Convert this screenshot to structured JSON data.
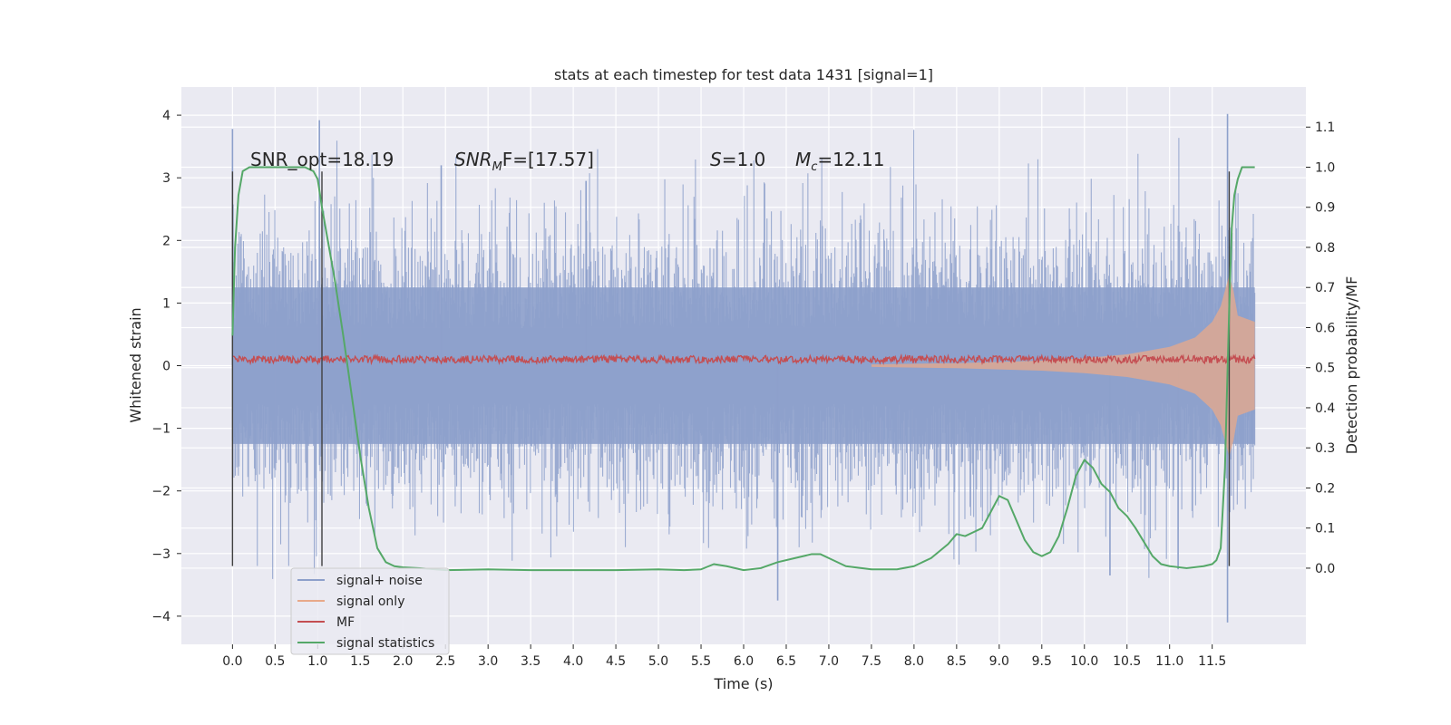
{
  "chart_data": {
    "type": "line",
    "title": "stats at each timestep for test data 1431 [signal=1]",
    "xlabel": "Time (s)",
    "ylabel": "Whitened strain",
    "y2label": "Detection probability/MF",
    "xlim": [
      -0.6,
      12.6
    ],
    "ylim": [
      -4.45,
      4.45
    ],
    "y2lim": [
      -0.19,
      1.2
    ],
    "grid": true,
    "x_ticks": [
      "0.0",
      "0.5",
      "1.0",
      "1.5",
      "2.0",
      "2.5",
      "3.0",
      "3.5",
      "4.0",
      "4.5",
      "5.0",
      "5.5",
      "6.0",
      "6.5",
      "7.0",
      "7.5",
      "8.0",
      "8.5",
      "9.0",
      "9.5",
      "10.0",
      "10.5",
      "11.0",
      "11.5"
    ],
    "y_ticks": [
      "4",
      "3",
      "2",
      "1",
      "0",
      "−1",
      "−2",
      "−3",
      "−4"
    ],
    "y2_ticks": [
      "1.1",
      "1.0",
      "0.9",
      "0.8",
      "0.7",
      "0.6",
      "0.5",
      "0.4",
      "0.3",
      "0.2",
      "0.1",
      "0.0"
    ],
    "annotations": {
      "snr_opt": "SNR_opt=18.19",
      "snr_mf_sym": "SNR",
      "snr_mf_sub": "M",
      "snr_mf_rest": "F=[17.57]",
      "s_sym": "S",
      "s_val": "=1.0",
      "mc_sym": "M",
      "mc_sub": "c",
      "mc_val": "=12.11"
    },
    "legend": {
      "placement": "lower-left",
      "entries": [
        {
          "label": "signal+ noise",
          "color": "#8da0cb"
        },
        {
          "label": "signal only",
          "color": "#e8a98a"
        },
        {
          "label": "MF",
          "color": "#c44e52"
        },
        {
          "label": "signal statistics",
          "color": "#55a868"
        }
      ]
    },
    "series": [
      {
        "name": "signal+ noise",
        "axis": "left",
        "color": "#8da0cb",
        "x_range": [
          0.0,
          12.0
        ],
        "typical_amplitude": 1.25,
        "peaks": [
          {
            "x": 0.0,
            "y": 3.78
          },
          {
            "x": 1.02,
            "y": 3.92
          },
          {
            "x": 2.45,
            "y": 3.2
          },
          {
            "x": 4.15,
            "y": 2.95
          },
          {
            "x": 6.4,
            "y": -3.75
          },
          {
            "x": 10.3,
            "y": -3.35
          },
          {
            "x": 11.1,
            "y": -3.25
          },
          {
            "x": 11.68,
            "y": 4.02
          },
          {
            "x": 11.68,
            "y": -4.1
          }
        ]
      },
      {
        "name": "signal only",
        "axis": "left",
        "color": "#e8a98a",
        "envelope_x": [
          7.5,
          8.0,
          8.5,
          9.0,
          9.5,
          10.0,
          10.5,
          11.0,
          11.3,
          11.5,
          11.6,
          11.65,
          11.7,
          11.75,
          11.8,
          12.0
        ],
        "envelope_y": [
          0.02,
          0.03,
          0.04,
          0.06,
          0.08,
          0.12,
          0.18,
          0.3,
          0.45,
          0.7,
          0.95,
          1.2,
          1.45,
          1.2,
          0.8,
          0.7
        ]
      },
      {
        "name": "MF",
        "axis": "left",
        "color": "#c44e52",
        "x_range": [
          0.0,
          12.0
        ],
        "mean": 0.1,
        "amplitude": 0.06
      },
      {
        "name": "signal statistics",
        "axis": "right",
        "color": "#55a868",
        "x": [
          0.0,
          0.03,
          0.07,
          0.12,
          0.2,
          0.3,
          0.5,
          0.7,
          0.85,
          0.95,
          1.0,
          1.05,
          1.1,
          1.15,
          1.2,
          1.3,
          1.4,
          1.5,
          1.6,
          1.7,
          1.8,
          1.9,
          2.0,
          2.2,
          2.5,
          3.0,
          3.5,
          4.0,
          4.5,
          5.0,
          5.3,
          5.5,
          5.65,
          5.8,
          6.0,
          6.2,
          6.4,
          6.6,
          6.8,
          6.9,
          7.0,
          7.2,
          7.5,
          7.8,
          8.0,
          8.2,
          8.4,
          8.5,
          8.6,
          8.7,
          8.8,
          8.9,
          9.0,
          9.1,
          9.2,
          9.3,
          9.4,
          9.5,
          9.6,
          9.7,
          9.8,
          9.9,
          10.0,
          10.1,
          10.2,
          10.3,
          10.4,
          10.5,
          10.6,
          10.7,
          10.8,
          10.9,
          11.0,
          11.2,
          11.4,
          11.5,
          11.55,
          11.6,
          11.65,
          11.7,
          11.73,
          11.76,
          11.8,
          11.85,
          11.9,
          12.0
        ],
        "y": [
          0.58,
          0.8,
          0.93,
          0.99,
          1.0,
          1.0,
          1.0,
          1.0,
          1.0,
          0.99,
          0.97,
          0.9,
          0.84,
          0.78,
          0.72,
          0.58,
          0.43,
          0.28,
          0.15,
          0.05,
          0.015,
          0.005,
          0.002,
          0.0,
          -0.005,
          -0.003,
          -0.005,
          -0.005,
          -0.005,
          -0.003,
          -0.005,
          -0.003,
          0.01,
          0.005,
          -0.005,
          0.0,
          0.015,
          0.025,
          0.035,
          0.035,
          0.025,
          0.005,
          -0.003,
          -0.003,
          0.005,
          0.025,
          0.06,
          0.085,
          0.08,
          0.09,
          0.1,
          0.14,
          0.18,
          0.17,
          0.12,
          0.07,
          0.04,
          0.03,
          0.04,
          0.08,
          0.15,
          0.23,
          0.27,
          0.25,
          0.21,
          0.19,
          0.15,
          0.13,
          0.1,
          0.065,
          0.03,
          0.01,
          0.005,
          0.0,
          0.005,
          0.01,
          0.02,
          0.05,
          0.25,
          0.65,
          0.85,
          0.93,
          0.97,
          1.0,
          1.0,
          1.0
        ]
      },
      {
        "name": "markers",
        "axis": "left",
        "color": "#404040",
        "vertical_lines": [
          {
            "x": 0.0,
            "y_from": -3.2,
            "y_to": 3.1
          },
          {
            "x": 1.05,
            "y_from": -3.2,
            "y_to": 3.1
          },
          {
            "x": 11.7,
            "y_from": -3.2,
            "y_to": 3.1
          }
        ]
      }
    ]
  }
}
